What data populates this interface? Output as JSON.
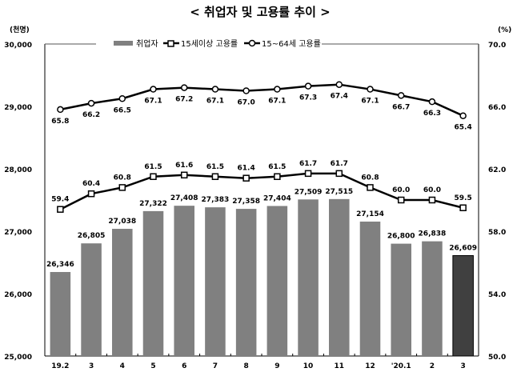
{
  "chart_data": {
    "type": "bar+line",
    "title": "< 취업자 및 고용률 추이 >",
    "y_left_unit": "(천명)",
    "y_right_unit": "(%)",
    "categories": [
      "19.2",
      "3",
      "4",
      "5",
      "6",
      "7",
      "8",
      "9",
      "10",
      "11",
      "12",
      "'20.1",
      "2",
      "3"
    ],
    "y_left_range": [
      25000,
      30000
    ],
    "y_left_ticks": [
      "25,000",
      "26,000",
      "27,000",
      "28,000",
      "29,000",
      "30,000"
    ],
    "y_right_range": [
      50,
      70
    ],
    "y_right_ticks": [
      "50.0",
      "54.0",
      "58.0",
      "62.0",
      "66.0",
      "70.0"
    ],
    "grid": false,
    "legend_position": "top",
    "series": [
      {
        "name": "취업자",
        "kind": "bar",
        "axis": "left",
        "color": "#808080",
        "highlight_last_color": "#404040",
        "values": [
          26346,
          26805,
          27038,
          27322,
          27408,
          27383,
          27358,
          27404,
          27509,
          27515,
          27154,
          26800,
          26838,
          26609
        ],
        "labels": [
          "26,346",
          "26,805",
          "27,038",
          "27,322",
          "27,408",
          "27,383",
          "27,358",
          "27,404",
          "27,509",
          "27,515",
          "27,154",
          "26,800",
          "26,838",
          "26,609"
        ]
      },
      {
        "name": "15세이상 고용률",
        "kind": "line",
        "marker": "square",
        "axis": "right",
        "color": "#000000",
        "values": [
          59.4,
          60.4,
          60.8,
          61.5,
          61.6,
          61.5,
          61.4,
          61.5,
          61.7,
          61.7,
          60.8,
          60.0,
          60.0,
          59.5
        ],
        "labels": [
          "59.4",
          "60.4",
          "60.8",
          "61.5",
          "61.6",
          "61.5",
          "61.4",
          "61.5",
          "61.7",
          "61.7",
          "60.8",
          "60.0",
          "60.0",
          "59.5"
        ]
      },
      {
        "name": "15~64세 고용률",
        "kind": "line",
        "marker": "circle",
        "axis": "right",
        "color": "#000000",
        "values": [
          65.8,
          66.2,
          66.5,
          67.1,
          67.2,
          67.1,
          67.0,
          67.1,
          67.3,
          67.4,
          67.1,
          66.7,
          66.3,
          65.4
        ],
        "labels": [
          "65.8",
          "66.2",
          "66.5",
          "67.1",
          "67.2",
          "67.1",
          "67.0",
          "67.1",
          "67.3",
          "67.4",
          "67.1",
          "66.7",
          "66.3",
          "65.4"
        ]
      }
    ]
  }
}
